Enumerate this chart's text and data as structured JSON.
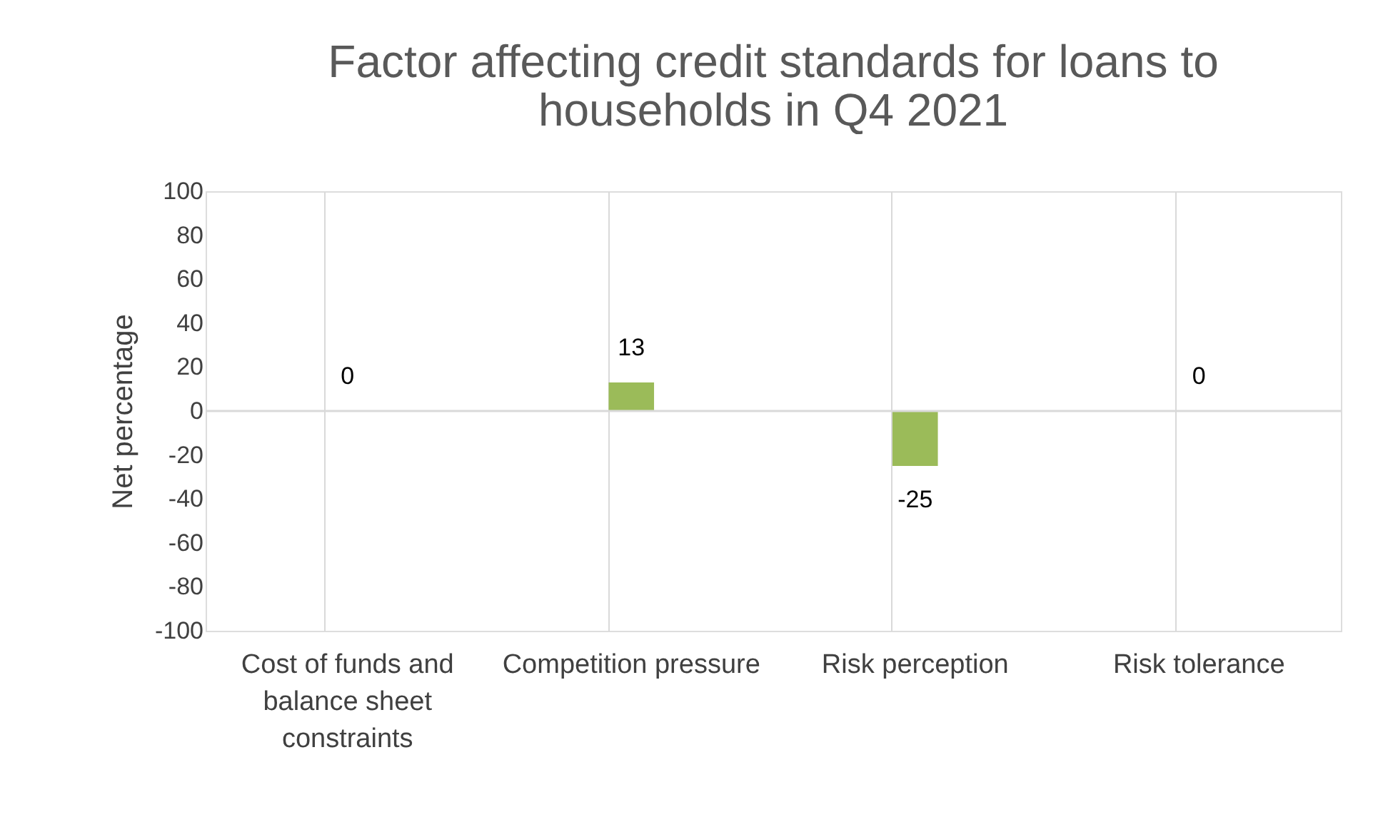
{
  "chart_data": {
    "type": "bar",
    "title": "Factor affecting credit standards for loans to households in Q4 2021",
    "ylabel": "Net percentage",
    "categories": [
      "Cost of funds and balance sheet constraints",
      "Competition pressure",
      "Risk perception",
      "Risk tolerance"
    ],
    "values": [
      0,
      13,
      -25,
      0
    ],
    "color": "#9bbb59",
    "ylim": [
      -100,
      100
    ],
    "yticks": [
      -100,
      -80,
      -60,
      -40,
      -20,
      0,
      20,
      40,
      60,
      80,
      100
    ],
    "ref_lines": [
      {
        "axis": "y",
        "value": 0,
        "color": "#d9d9d9"
      }
    ],
    "grid": "x",
    "data_labels": true
  }
}
